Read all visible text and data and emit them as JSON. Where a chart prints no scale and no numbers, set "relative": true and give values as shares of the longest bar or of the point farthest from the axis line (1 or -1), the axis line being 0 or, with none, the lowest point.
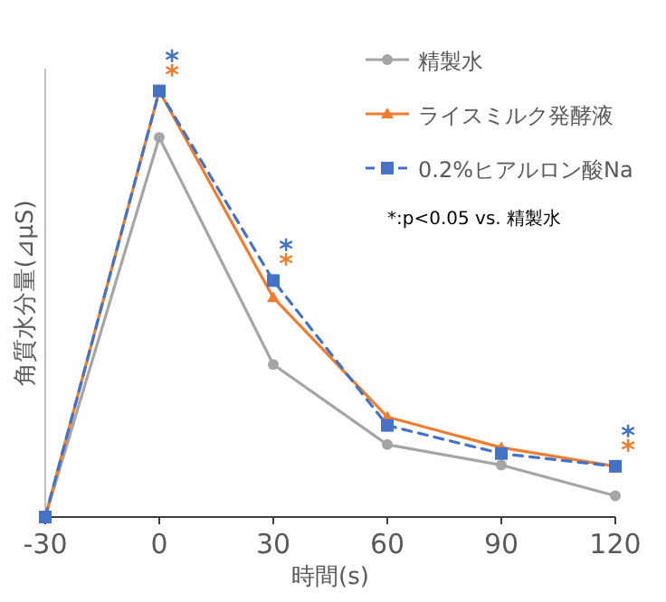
{
  "chart_data": {
    "type": "line",
    "relative": true,
    "xlabel": "時間(s)",
    "ylabel": "角質水分量(⊿μS)",
    "x": [
      -30,
      0,
      30,
      60,
      90,
      120
    ],
    "xlim": [
      -30,
      120
    ],
    "xticks": [
      -30,
      0,
      30,
      60,
      90,
      120
    ],
    "legend": "top right",
    "grid": false,
    "series": [
      {
        "name": "精製水",
        "color": "#a5a5a5",
        "marker": "circle",
        "line_style": "solid",
        "values": [
          0,
          0.891,
          0.358,
          0.17,
          0.122,
          0.05
        ]
      },
      {
        "name": "ライスミルク発酵液",
        "color": "#ed7d31",
        "marker": "triangle",
        "line_style": "solid",
        "values": [
          0,
          1,
          0.515,
          0.235,
          0.163,
          0.119
        ]
      },
      {
        "name": "0.2%ヒアルロン酸Na",
        "color": "#4472c4",
        "marker": "square",
        "line_style": "dashed",
        "values": [
          0,
          1,
          0.555,
          0.215,
          0.149,
          0.119
        ]
      }
    ],
    "annotations": [
      {
        "text": "*",
        "x": 0,
        "y": 1
      },
      {
        "text": "*",
        "x": 0,
        "y": 1
      },
      {
        "text": "*",
        "x": 30,
        "y": 0.555
      },
      {
        "text": "*",
        "x": 30,
        "y": 0.555
      },
      {
        "text": "*",
        "x": 120,
        "y": 0.119
      },
      {
        "text": "*",
        "x": 120,
        "y": 0.119
      },
      "*:p<0.05 vs. 精製水"
    ]
  }
}
